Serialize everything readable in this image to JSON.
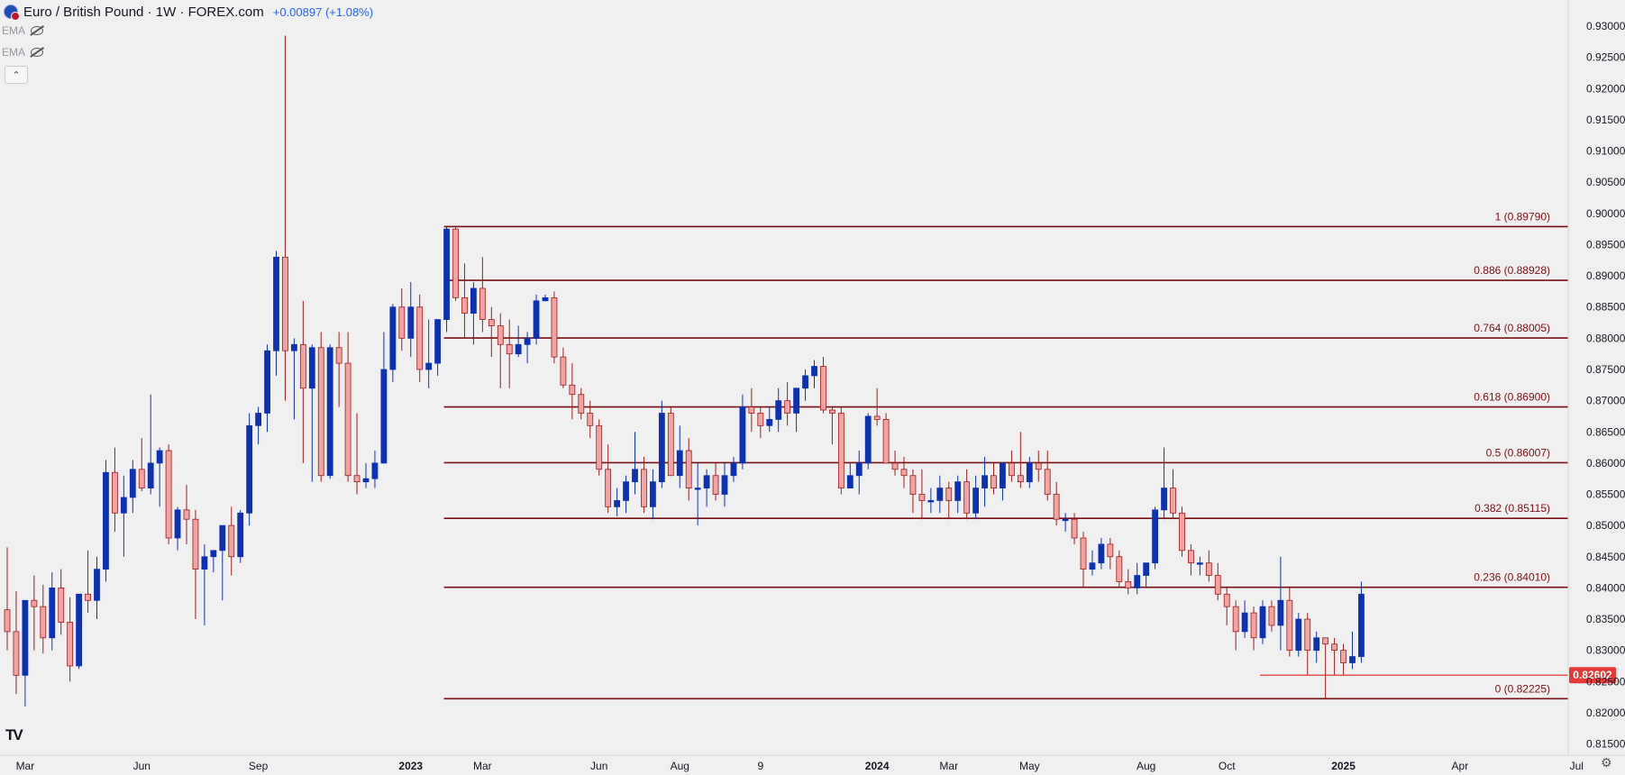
{
  "header": {
    "title": "Euro / British Pound · 1W · FOREX.com",
    "change": "+0.00897 (+1.08%)",
    "indicators": [
      {
        "label": "EMA",
        "icon": "eye-off-icon"
      },
      {
        "label": "EMA",
        "icon": "eye-off-icon"
      }
    ],
    "collapse_icon": "chevron-up-icon",
    "logo": "TV"
  },
  "colors": {
    "up": "#0d31b5",
    "down_fill": "#f4a3a3",
    "down_border": "#9c1c1c",
    "fib_line": "#7b0f14",
    "price_tag": "#e53935",
    "background": "#f0f0f0"
  },
  "chart_data": {
    "type": "candlestick",
    "y_axis": {
      "range": [
        0.8132,
        0.9342
      ],
      "ticks": [
        "0.93000",
        "0.92500",
        "0.92000",
        "0.91500",
        "0.91000",
        "0.90500",
        "0.90000",
        "0.89500",
        "0.89000",
        "0.88500",
        "0.88000",
        "0.87500",
        "0.87000",
        "0.86500",
        "0.86000",
        "0.85500",
        "0.85000",
        "0.84500",
        "0.84000",
        "0.83500",
        "0.83000",
        "0.82500",
        "0.82000",
        "0.81500"
      ]
    },
    "x_axis": {
      "labels": [
        {
          "text": "Mar",
          "bar": 2
        },
        {
          "text": "Jun",
          "bar": 15
        },
        {
          "text": "Sep",
          "bar": 28
        },
        {
          "text": "2023",
          "bar": 45,
          "bold": true
        },
        {
          "text": "Mar",
          "bar": 53
        },
        {
          "text": "Jun",
          "bar": 66
        },
        {
          "text": "Aug",
          "bar": 75
        },
        {
          "text": "9",
          "bar": 84
        },
        {
          "text": "2024",
          "bar": 97,
          "bold": true
        },
        {
          "text": "Mar",
          "bar": 105
        },
        {
          "text": "May",
          "bar": 114
        },
        {
          "text": "Aug",
          "bar": 127
        },
        {
          "text": "Oct",
          "bar": 136
        },
        {
          "text": "2025",
          "bar": 149,
          "bold": true
        },
        {
          "text": "Apr",
          "bar": 162
        },
        {
          "text": "Jul",
          "bar": 175
        }
      ]
    },
    "fib_levels": [
      {
        "label": "1 (0.89790)",
        "value": 0.8979
      },
      {
        "label": "0.886 (0.88928)",
        "value": 0.88928
      },
      {
        "label": "0.764 (0.88005)",
        "value": 0.88005
      },
      {
        "label": "0.618 (0.86900)",
        "value": 0.869
      },
      {
        "label": "0.5 (0.86007)",
        "value": 0.86007
      },
      {
        "label": "0.382 (0.85115)",
        "value": 0.85115
      },
      {
        "label": "0.236 (0.84010)",
        "value": 0.8401
      },
      {
        "label": "0 (0.82225)",
        "value": 0.82225
      }
    ],
    "fib_start_bar": 49,
    "current_price": {
      "label": "0.82602",
      "value": 0.82602,
      "start_bar": 140
    },
    "candles": [
      [
        0.8365,
        0.8465,
        0.83,
        0.833
      ],
      [
        0.833,
        0.8395,
        0.823,
        0.826
      ],
      [
        0.826,
        0.838,
        0.821,
        0.838
      ],
      [
        0.838,
        0.842,
        0.83,
        0.837
      ],
      [
        0.837,
        0.8405,
        0.8295,
        0.832
      ],
      [
        0.832,
        0.8425,
        0.83,
        0.84
      ],
      [
        0.84,
        0.843,
        0.8325,
        0.8345
      ],
      [
        0.8345,
        0.8385,
        0.825,
        0.8275
      ],
      [
        0.8275,
        0.839,
        0.827,
        0.839
      ],
      [
        0.839,
        0.846,
        0.836,
        0.838
      ],
      [
        0.838,
        0.845,
        0.835,
        0.843
      ],
      [
        0.843,
        0.8605,
        0.841,
        0.8585
      ],
      [
        0.8585,
        0.8625,
        0.849,
        0.852
      ],
      [
        0.852,
        0.858,
        0.845,
        0.8545
      ],
      [
        0.8545,
        0.8605,
        0.852,
        0.859
      ],
      [
        0.859,
        0.864,
        0.8555,
        0.856
      ],
      [
        0.856,
        0.871,
        0.855,
        0.86
      ],
      [
        0.86,
        0.8625,
        0.853,
        0.862
      ],
      [
        0.862,
        0.863,
        0.847,
        0.848
      ],
      [
        0.848,
        0.853,
        0.846,
        0.8525
      ],
      [
        0.8525,
        0.8565,
        0.847,
        0.851
      ],
      [
        0.851,
        0.8525,
        0.835,
        0.843
      ],
      [
        0.843,
        0.847,
        0.834,
        0.845
      ],
      [
        0.845,
        0.846,
        0.8425,
        0.846
      ],
      [
        0.846,
        0.85,
        0.838,
        0.85
      ],
      [
        0.85,
        0.853,
        0.842,
        0.845
      ],
      [
        0.845,
        0.8525,
        0.844,
        0.852
      ],
      [
        0.852,
        0.868,
        0.85,
        0.866
      ],
      [
        0.866,
        0.869,
        0.863,
        0.868
      ],
      [
        0.868,
        0.879,
        0.865,
        0.878
      ],
      [
        0.878,
        0.894,
        0.874,
        0.893
      ],
      [
        0.893,
        0.9285,
        0.87,
        0.878
      ],
      [
        0.878,
        0.88,
        0.867,
        0.879
      ],
      [
        0.879,
        0.886,
        0.86,
        0.872
      ],
      [
        0.872,
        0.879,
        0.857,
        0.8785
      ],
      [
        0.8785,
        0.881,
        0.857,
        0.858
      ],
      [
        0.858,
        0.879,
        0.8575,
        0.8785
      ],
      [
        0.8785,
        0.881,
        0.869,
        0.876
      ],
      [
        0.876,
        0.881,
        0.857,
        0.858
      ],
      [
        0.858,
        0.868,
        0.855,
        0.857
      ],
      [
        0.857,
        0.86,
        0.856,
        0.8575
      ],
      [
        0.8575,
        0.862,
        0.856,
        0.86
      ],
      [
        0.86,
        0.881,
        0.86,
        0.875
      ],
      [
        0.875,
        0.8855,
        0.873,
        0.885
      ],
      [
        0.885,
        0.888,
        0.878,
        0.88
      ],
      [
        0.88,
        0.889,
        0.877,
        0.885
      ],
      [
        0.885,
        0.887,
        0.873,
        0.875
      ],
      [
        0.875,
        0.883,
        0.872,
        0.876
      ],
      [
        0.876,
        0.883,
        0.874,
        0.883
      ],
      [
        0.883,
        0.898,
        0.881,
        0.8975
      ],
      [
        0.8975,
        0.898,
        0.886,
        0.8865
      ],
      [
        0.8865,
        0.892,
        0.88,
        0.884
      ],
      [
        0.884,
        0.889,
        0.879,
        0.888
      ],
      [
        0.888,
        0.893,
        0.881,
        0.883
      ],
      [
        0.883,
        0.885,
        0.877,
        0.882
      ],
      [
        0.882,
        0.884,
        0.872,
        0.879
      ],
      [
        0.879,
        0.883,
        0.872,
        0.8775
      ],
      [
        0.8775,
        0.882,
        0.877,
        0.879
      ],
      [
        0.879,
        0.881,
        0.876,
        0.88
      ],
      [
        0.88,
        0.887,
        0.879,
        0.886
      ],
      [
        0.886,
        0.887,
        0.886,
        0.8865
      ],
      [
        0.8865,
        0.8875,
        0.876,
        0.877
      ],
      [
        0.877,
        0.8785,
        0.872,
        0.8725
      ],
      [
        0.8725,
        0.876,
        0.867,
        0.871
      ],
      [
        0.871,
        0.872,
        0.867,
        0.868
      ],
      [
        0.868,
        0.87,
        0.864,
        0.866
      ],
      [
        0.866,
        0.867,
        0.858,
        0.859
      ],
      [
        0.859,
        0.863,
        0.852,
        0.853
      ],
      [
        0.853,
        0.856,
        0.8515,
        0.854
      ],
      [
        0.854,
        0.858,
        0.852,
        0.857
      ],
      [
        0.857,
        0.865,
        0.855,
        0.859
      ],
      [
        0.859,
        0.861,
        0.852,
        0.853
      ],
      [
        0.853,
        0.859,
        0.851,
        0.857
      ],
      [
        0.857,
        0.87,
        0.856,
        0.868
      ],
      [
        0.868,
        0.869,
        0.858,
        0.858
      ],
      [
        0.858,
        0.866,
        0.856,
        0.862
      ],
      [
        0.862,
        0.864,
        0.854,
        0.856
      ],
      [
        0.856,
        0.86,
        0.85,
        0.856
      ],
      [
        0.856,
        0.859,
        0.853,
        0.858
      ],
      [
        0.858,
        0.86,
        0.854,
        0.855
      ],
      [
        0.855,
        0.86,
        0.853,
        0.858
      ],
      [
        0.858,
        0.861,
        0.857,
        0.86
      ],
      [
        0.86,
        0.871,
        0.859,
        0.869
      ],
      [
        0.869,
        0.872,
        0.865,
        0.868
      ],
      [
        0.868,
        0.869,
        0.864,
        0.866
      ],
      [
        0.866,
        0.869,
        0.865,
        0.867
      ],
      [
        0.867,
        0.872,
        0.865,
        0.87
      ],
      [
        0.87,
        0.873,
        0.866,
        0.868
      ],
      [
        0.868,
        0.872,
        0.865,
        0.872
      ],
      [
        0.872,
        0.875,
        0.87,
        0.874
      ],
      [
        0.874,
        0.8765,
        0.872,
        0.8755
      ],
      [
        0.8755,
        0.877,
        0.868,
        0.8685
      ],
      [
        0.8685,
        0.869,
        0.863,
        0.868
      ],
      [
        0.868,
        0.869,
        0.855,
        0.856
      ],
      [
        0.856,
        0.86,
        0.856,
        0.858
      ],
      [
        0.858,
        0.862,
        0.855,
        0.86
      ],
      [
        0.86,
        0.868,
        0.859,
        0.8675
      ],
      [
        0.8675,
        0.872,
        0.866,
        0.867
      ],
      [
        0.867,
        0.868,
        0.86,
        0.86
      ],
      [
        0.86,
        0.862,
        0.858,
        0.859
      ],
      [
        0.859,
        0.861,
        0.856,
        0.858
      ],
      [
        0.858,
        0.859,
        0.852,
        0.855
      ],
      [
        0.855,
        0.859,
        0.851,
        0.854
      ],
      [
        0.854,
        0.856,
        0.852,
        0.854
      ],
      [
        0.854,
        0.858,
        0.852,
        0.856
      ],
      [
        0.856,
        0.857,
        0.851,
        0.854
      ],
      [
        0.854,
        0.858,
        0.852,
        0.857
      ],
      [
        0.857,
        0.859,
        0.851,
        0.852
      ],
      [
        0.852,
        0.858,
        0.851,
        0.856
      ],
      [
        0.856,
        0.861,
        0.853,
        0.858
      ],
      [
        0.858,
        0.86,
        0.855,
        0.856
      ],
      [
        0.856,
        0.86,
        0.854,
        0.86
      ],
      [
        0.86,
        0.862,
        0.857,
        0.858
      ],
      [
        0.858,
        0.865,
        0.856,
        0.857
      ],
      [
        0.857,
        0.861,
        0.856,
        0.86
      ],
      [
        0.86,
        0.862,
        0.857,
        0.859
      ],
      [
        0.859,
        0.862,
        0.854,
        0.855
      ],
      [
        0.855,
        0.857,
        0.85,
        0.851
      ],
      [
        0.851,
        0.852,
        0.849,
        0.851
      ],
      [
        0.851,
        0.852,
        0.847,
        0.848
      ],
      [
        0.848,
        0.849,
        0.84,
        0.843
      ],
      [
        0.843,
        0.846,
        0.842,
        0.844
      ],
      [
        0.844,
        0.848,
        0.843,
        0.847
      ],
      [
        0.847,
        0.848,
        0.843,
        0.845
      ],
      [
        0.845,
        0.846,
        0.84,
        0.841
      ],
      [
        0.841,
        0.843,
        0.839,
        0.84
      ],
      [
        0.84,
        0.844,
        0.839,
        0.842
      ],
      [
        0.842,
        0.844,
        0.84,
        0.844
      ],
      [
        0.844,
        0.853,
        0.843,
        0.8525
      ],
      [
        0.8525,
        0.8625,
        0.851,
        0.856
      ],
      [
        0.856,
        0.859,
        0.851,
        0.852
      ],
      [
        0.852,
        0.853,
        0.845,
        0.846
      ],
      [
        0.846,
        0.847,
        0.842,
        0.844
      ],
      [
        0.844,
        0.845,
        0.842,
        0.844
      ],
      [
        0.844,
        0.846,
        0.841,
        0.842
      ],
      [
        0.842,
        0.844,
        0.838,
        0.839
      ],
      [
        0.839,
        0.84,
        0.834,
        0.837
      ],
      [
        0.837,
        0.838,
        0.83,
        0.833
      ],
      [
        0.833,
        0.838,
        0.832,
        0.836
      ],
      [
        0.836,
        0.837,
        0.83,
        0.832
      ],
      [
        0.832,
        0.838,
        0.831,
        0.837
      ],
      [
        0.837,
        0.838,
        0.833,
        0.834
      ],
      [
        0.834,
        0.845,
        0.83,
        0.838
      ],
      [
        0.838,
        0.84,
        0.829,
        0.83
      ],
      [
        0.83,
        0.836,
        0.829,
        0.835
      ],
      [
        0.835,
        0.836,
        0.826,
        0.83
      ],
      [
        0.83,
        0.833,
        0.828,
        0.832
      ],
      [
        0.832,
        0.832,
        0.8222,
        0.831
      ],
      [
        0.831,
        0.832,
        0.826,
        0.83
      ],
      [
        0.83,
        0.831,
        0.826,
        0.828
      ],
      [
        0.828,
        0.833,
        0.827,
        0.829
      ],
      [
        0.829,
        0.841,
        0.828,
        0.839
      ]
    ]
  }
}
